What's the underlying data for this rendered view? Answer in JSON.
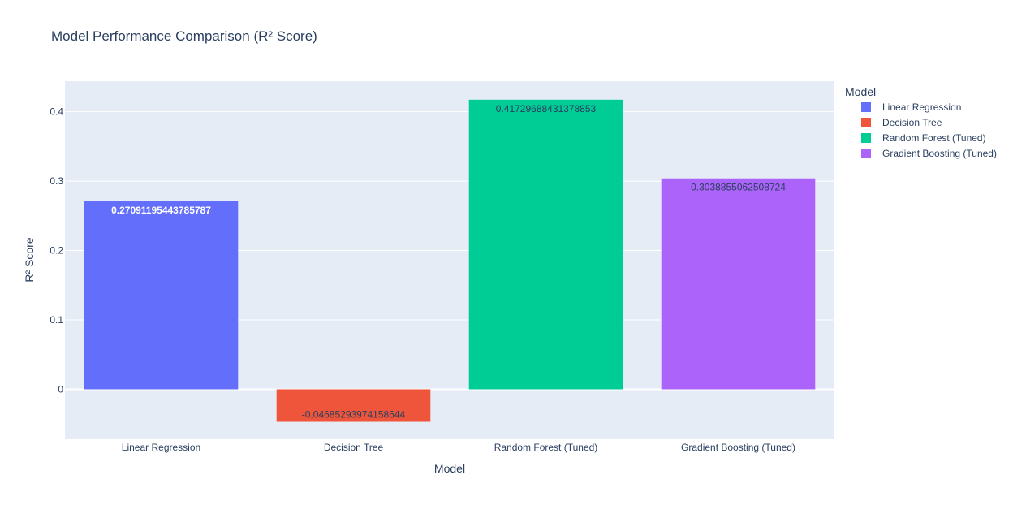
{
  "chart_data": {
    "type": "bar",
    "title": "Model Performance Comparison (R² Score)",
    "xlabel": "Model",
    "ylabel": "R² Score",
    "categories": [
      "Linear Regression",
      "Decision Tree",
      "Random Forest (Tuned)",
      "Gradient Boosting (Tuned)"
    ],
    "values": [
      0.27091195443785787,
      -0.04685293974158644,
      0.41729688431378853,
      0.3038855062508724
    ],
    "value_labels": [
      "0.27091195443785787",
      "-0.04685293974158644",
      "0.41729688431378853",
      "0.3038855062508724"
    ],
    "colors": [
      "#636efa",
      "#ef553b",
      "#00cc96",
      "#ab63fa"
    ],
    "label_colors": [
      "#ffffff",
      "#2a3f5f",
      "#2a3f5f",
      "#2a3f5f"
    ],
    "ylim": [
      -0.072,
      0.444
    ],
    "yticks": [
      0,
      0.1,
      0.2,
      0.3,
      0.4
    ],
    "ytick_labels": [
      "0",
      "0.1",
      "0.2",
      "0.3",
      "0.4"
    ],
    "grid": true,
    "plot_background": "#e5ecf6",
    "legend": {
      "title": "Model",
      "placement": "right",
      "entries": [
        "Linear Regression",
        "Decision Tree",
        "Random Forest (Tuned)",
        "Gradient Boosting (Tuned)"
      ]
    }
  }
}
